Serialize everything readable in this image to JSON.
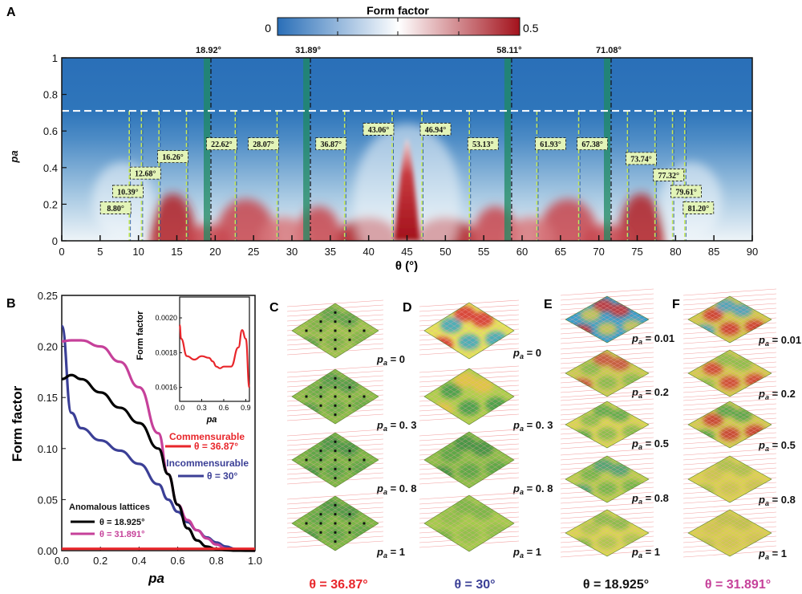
{
  "panels": {
    "a": "A",
    "b": "B",
    "c": "C",
    "d": "D",
    "e": "E",
    "f": "F"
  },
  "colorbar": {
    "title": "Form factor",
    "min_label": "0",
    "max_label": "0.5",
    "colors": [
      "#2a6fb8",
      "#ffffff",
      "#a3121c"
    ]
  },
  "chart_data": [
    {
      "type": "heatmap",
      "panel": "A",
      "xlabel": "θ (°)",
      "ylabel": "pa",
      "xlim": [
        0,
        90
      ],
      "ylim": [
        0,
        1
      ],
      "x_ticks": [
        "0",
        "5",
        "10",
        "15",
        "20",
        "25",
        "30",
        "35",
        "40",
        "45",
        "50",
        "55",
        "60",
        "65",
        "70",
        "75",
        "80",
        "85",
        "90"
      ],
      "y_ticks": [
        "0",
        "0.2",
        "0.4",
        "0.6",
        "0.8",
        "1"
      ],
      "threshold_pa": 0.71,
      "anomalous_angles": [
        {
          "theta": 18.92,
          "label": "18.92°"
        },
        {
          "theta": 31.89,
          "label": "31.89°"
        },
        {
          "theta": 58.11,
          "label": "58.11°"
        },
        {
          "theta": 71.08,
          "label": "71.08°"
        }
      ],
      "commensurate_angles": [
        {
          "theta": 8.8,
          "label": "8.80°",
          "label_pa": 0.18
        },
        {
          "theta": 10.39,
          "label": "10.39°",
          "label_pa": 0.27
        },
        {
          "theta": 12.68,
          "label": "12.68°",
          "label_pa": 0.37
        },
        {
          "theta": 16.26,
          "label": "16.26°",
          "label_pa": 0.46
        },
        {
          "theta": 22.62,
          "label": "22.62°",
          "label_pa": 0.53
        },
        {
          "theta": 28.07,
          "label": "28.07°",
          "label_pa": 0.53
        },
        {
          "theta": 36.87,
          "label": "36.87°",
          "label_pa": 0.53
        },
        {
          "theta": 43.06,
          "label": "43.06°",
          "label_pa": 0.61
        },
        {
          "theta": 46.94,
          "label": "46.94°",
          "label_pa": 0.61
        },
        {
          "theta": 53.13,
          "label": "53.13°",
          "label_pa": 0.53
        },
        {
          "theta": 61.93,
          "label": "61.93°",
          "label_pa": 0.53
        },
        {
          "theta": 67.38,
          "label": "67.38°",
          "label_pa": 0.53
        },
        {
          "theta": 73.74,
          "label": "73.74°",
          "label_pa": 0.45
        },
        {
          "theta": 77.32,
          "label": "77.32°",
          "label_pa": 0.36
        },
        {
          "theta": 79.61,
          "label": "79.61°",
          "label_pa": 0.27
        },
        {
          "theta": 81.2,
          "label": "81.20°",
          "label_pa": 0.18
        }
      ],
      "color_range": [
        0,
        0.5
      ]
    },
    {
      "type": "line",
      "panel": "B",
      "xlabel": "pa",
      "ylabel": "Form factor",
      "xlim": [
        0,
        1
      ],
      "ylim": [
        0,
        0.25
      ],
      "x_ticks": [
        "0.0",
        "0.2",
        "0.4",
        "0.6",
        "0.8",
        "1.0"
      ],
      "y_ticks": [
        "0.00",
        "0.05",
        "0.10",
        "0.15",
        "0.20",
        "0.25"
      ],
      "x": [
        0,
        0.05,
        0.1,
        0.2,
        0.3,
        0.4,
        0.5,
        0.55,
        0.6,
        0.65,
        0.7,
        0.75,
        0.8,
        0.85,
        0.9,
        0.95,
        1.0
      ],
      "series": [
        {
          "name": "θ = 36.87°",
          "color": "#e8262b",
          "values": [
            0.0018,
            0.0018,
            0.0018,
            0.0018,
            0.0018,
            0.0018,
            0.0018,
            0.0018,
            0.0018,
            0.0018,
            0.0018,
            0.0018,
            0.0018,
            0.0018,
            0.0018,
            0.0018,
            0.0018
          ]
        },
        {
          "name": "θ = 30°",
          "color": "#3b3f96",
          "values": [
            0.22,
            0.135,
            0.12,
            0.108,
            0.098,
            0.085,
            0.065,
            0.05,
            0.038,
            0.028,
            0.02,
            0.013,
            0.008,
            0.004,
            0.0015,
            0.0005,
            0.0002
          ]
        },
        {
          "name": "θ = 18.925°",
          "color": "#000000",
          "values": [
            0.168,
            0.172,
            0.168,
            0.155,
            0.14,
            0.125,
            0.1,
            0.075,
            0.045,
            0.022,
            0.01,
            0.004,
            0.0015,
            0.0005,
            0.0001,
            0,
            0
          ]
        },
        {
          "name": "θ = 31.891°",
          "color": "#c6419a",
          "values": [
            0.205,
            0.206,
            0.206,
            0.2,
            0.185,
            0.16,
            0.115,
            0.075,
            0.045,
            0.03,
            0.02,
            0.012,
            0.006,
            0.002,
            0.0008,
            0.0002,
            0
          ]
        }
      ],
      "annotations": {
        "commensurable": "Commensurable",
        "incommensurable": "Incommensurable",
        "anomalous": "Anomalous  lattices"
      },
      "inset": {
        "ylabel": "Form factor",
        "xlabel": "pa",
        "x_ticks": [
          "0.0",
          "0.3",
          "0.6",
          "0.9"
        ],
        "y_ticks": [
          "0.0016",
          "0.0018",
          "0.0020"
        ],
        "ylim": [
          0.00152,
          0.00212
        ],
        "xlim": [
          0,
          0.95
        ],
        "x": [
          0,
          0.02,
          0.1,
          0.2,
          0.3,
          0.4,
          0.45,
          0.5,
          0.55,
          0.6,
          0.7,
          0.8,
          0.85,
          0.9,
          0.95
        ],
        "values": [
          0.00196,
          0.00188,
          0.00178,
          0.00176,
          0.00178,
          0.00177,
          0.00175,
          0.00172,
          0.00171,
          0.00172,
          0.00172,
          0.00183,
          0.00193,
          0.00188,
          0.0016
        ]
      }
    }
  ],
  "lattices": {
    "C": {
      "theta_label": "θ = 36.87°",
      "color": "#e8262b",
      "pa_labels": [
        "pa = 0",
        "pa = 0. 3",
        "pa = 0. 8",
        "pa = 1"
      ]
    },
    "D": {
      "theta_label": "θ = 30°",
      "color": "#3b3f96",
      "pa_labels": [
        "pa = 0",
        "pa = 0. 3",
        "pa = 0. 8",
        "pa = 1"
      ]
    },
    "E": {
      "theta_label": "θ = 18.925°",
      "color": "#111111",
      "pa_labels": [
        "pa = 0.01",
        "pa = 0.2",
        "pa = 0.5",
        "pa = 0.8",
        "pa = 1"
      ]
    },
    "F": {
      "theta_label": "θ = 31.891°",
      "color": "#c6419a",
      "pa_labels": [
        "pa = 0.01",
        "pa = 0.2",
        "pa = 0.5",
        "pa = 0.8",
        "pa = 1"
      ]
    }
  }
}
